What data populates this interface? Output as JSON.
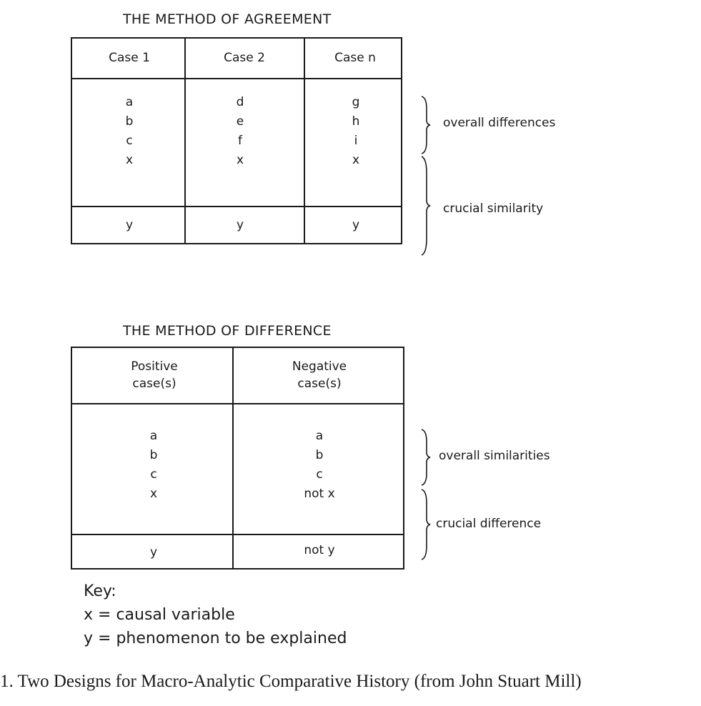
{
  "agreement": {
    "title": "THE METHOD OF AGREEMENT",
    "headers": [
      "Case 1",
      "Case 2",
      "Case n"
    ],
    "columns": [
      [
        "a",
        "b",
        "c",
        "x"
      ],
      [
        "d",
        "e",
        "f",
        "x"
      ],
      [
        "g",
        "h",
        "i",
        "x"
      ]
    ],
    "outcomes": [
      "y",
      "y",
      "y"
    ],
    "brace_labels": [
      "overall differences",
      "crucial similarity"
    ]
  },
  "difference": {
    "title": "THE METHOD OF DIFFERENCE",
    "headers": [
      "Positive\ncase(s)",
      "Negative\ncase(s)"
    ],
    "columns": [
      [
        "a",
        "b",
        "c",
        "x"
      ],
      [
        "a",
        "b",
        "c",
        "not x"
      ]
    ],
    "outcomes": [
      "y",
      "not y"
    ],
    "brace_labels": [
      "overall similarities",
      "crucial difference"
    ]
  },
  "key": {
    "heading": "Key:",
    "items": [
      "x = causal variable",
      "y = phenomenon to be explained"
    ]
  },
  "caption": "1. Two Designs for Macro-Analytic Comparative History (from John Stuart Mill)"
}
